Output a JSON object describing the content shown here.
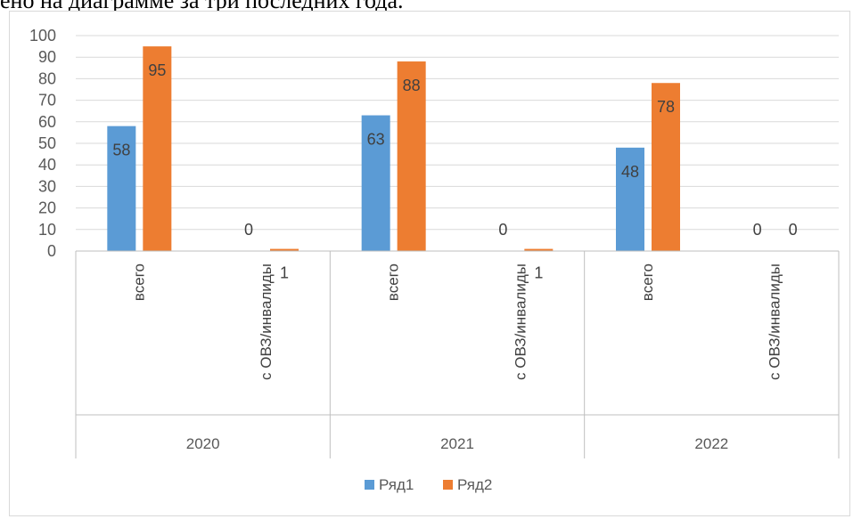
{
  "top_text": "ено на диаграмме за три последних года.",
  "chart_data": {
    "type": "bar",
    "groups": [
      "2020",
      "2021",
      "2022"
    ],
    "subcategories": [
      "всего",
      "с ОВЗ/инвалиды"
    ],
    "series": [
      {
        "name": "Ряд1",
        "color": "#5b9bd5",
        "values": [
          [
            58,
            0
          ],
          [
            63,
            0
          ],
          [
            48,
            0
          ]
        ]
      },
      {
        "name": "Ряд2",
        "color": "#ed7d31",
        "values": [
          [
            95,
            1
          ],
          [
            88,
            1
          ],
          [
            78,
            0
          ]
        ]
      }
    ],
    "ylim": [
      0,
      100
    ],
    "yticks": [
      0,
      10,
      20,
      30,
      40,
      50,
      60,
      70,
      80,
      90,
      100
    ],
    "grid": true,
    "legend_position": "bottom"
  }
}
